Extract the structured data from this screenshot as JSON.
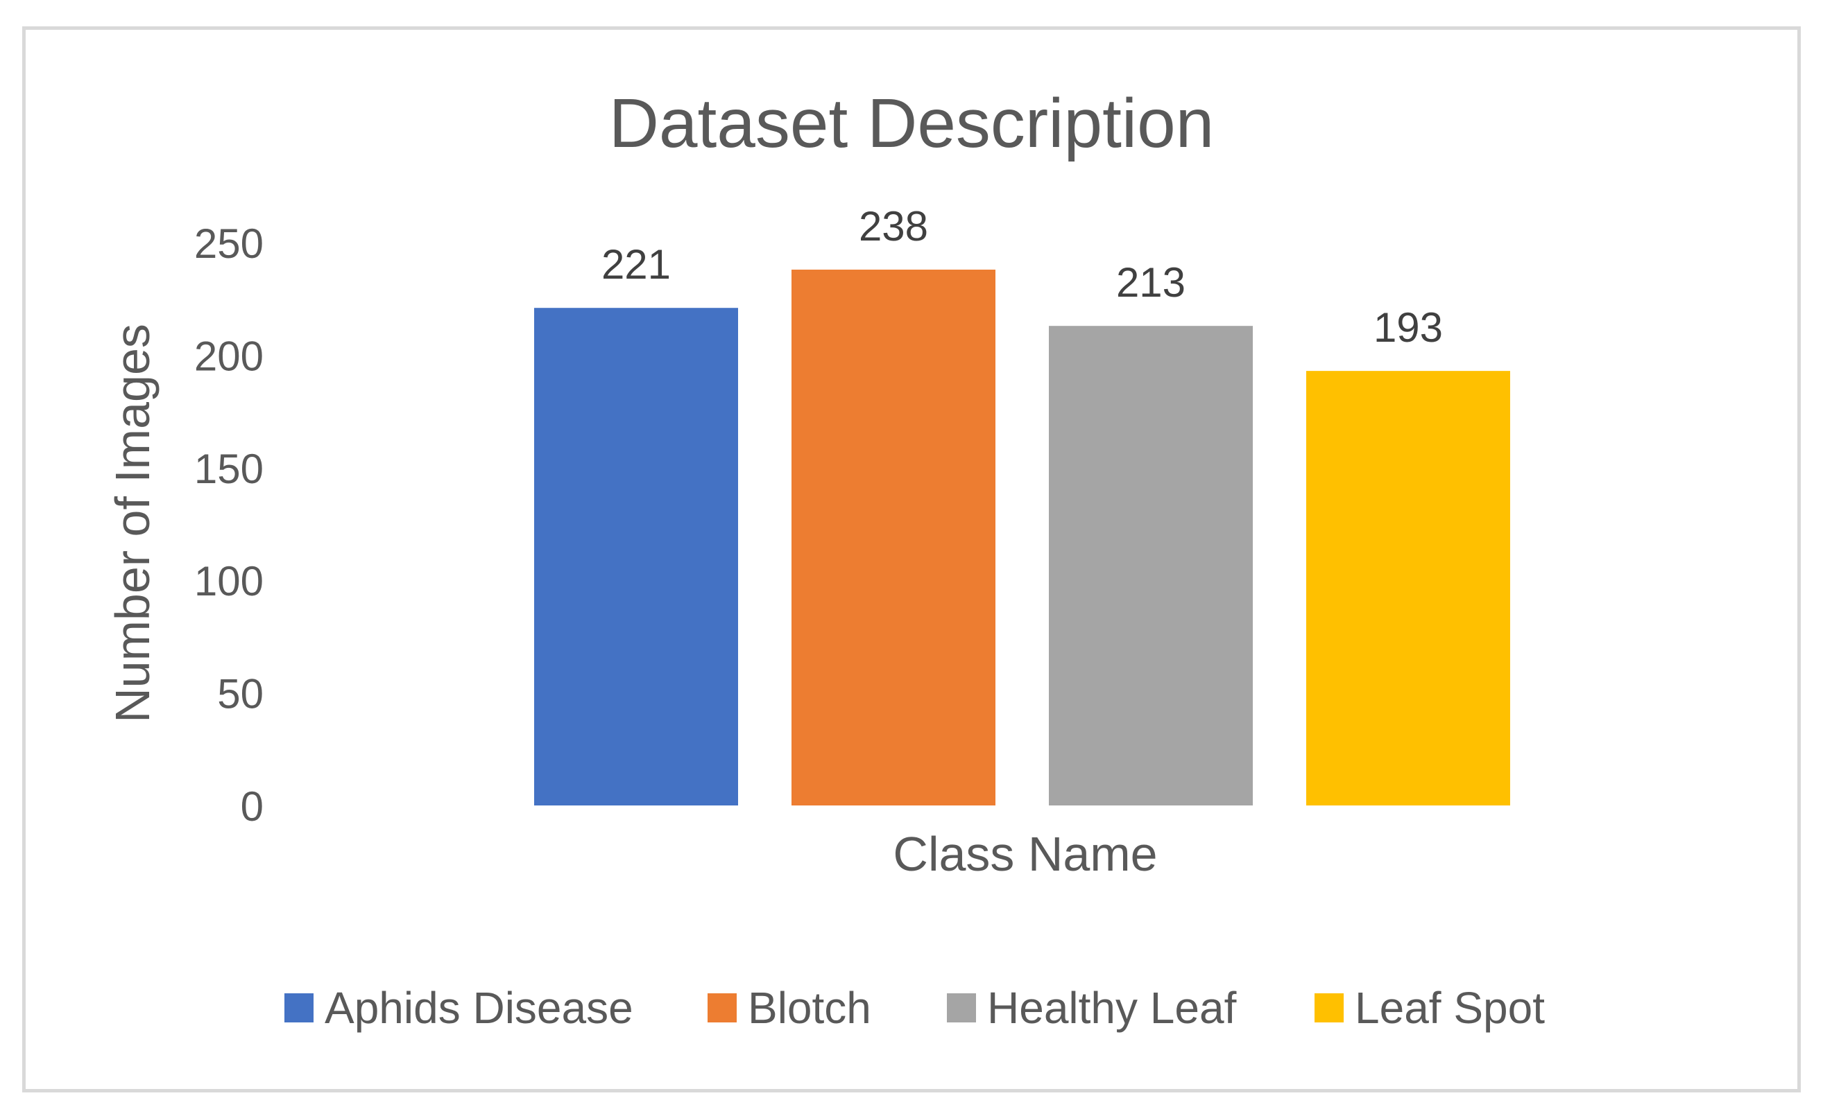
{
  "chart_data": {
    "type": "bar",
    "title": "Dataset Description",
    "xlabel": "Class Name",
    "ylabel": "Number of Images",
    "categories": [
      "Aphids Disease",
      "Blotch",
      "Healthy Leaf",
      "Leaf Spot"
    ],
    "values": [
      221,
      238,
      213,
      193
    ],
    "data_labels": [
      "221",
      "238",
      "213",
      "193"
    ],
    "colors": [
      "#4472c4",
      "#ed7d31",
      "#a5a5a5",
      "#ffc000"
    ],
    "ylim": [
      0,
      250
    ],
    "yticks": [
      0,
      50,
      100,
      150,
      200,
      250
    ],
    "ytick_labels": [
      "0",
      "50",
      "100",
      "150",
      "200",
      "250"
    ],
    "grid": false,
    "legend": {
      "position": "bottom",
      "entries": [
        "Aphids Disease",
        "Blotch",
        "Healthy Leaf",
        "Leaf Spot"
      ]
    }
  }
}
